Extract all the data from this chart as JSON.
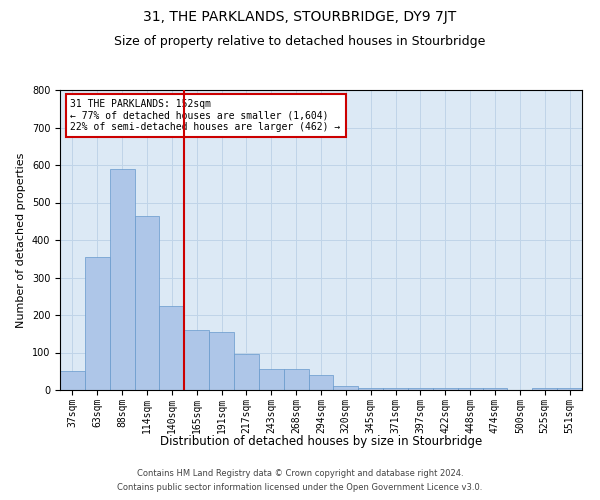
{
  "title": "31, THE PARKLANDS, STOURBRIDGE, DY9 7JT",
  "subtitle": "Size of property relative to detached houses in Stourbridge",
  "xlabel": "Distribution of detached houses by size in Stourbridge",
  "ylabel": "Number of detached properties",
  "bar_labels": [
    "37sqm",
    "63sqm",
    "88sqm",
    "114sqm",
    "140sqm",
    "165sqm",
    "191sqm",
    "217sqm",
    "243sqm",
    "268sqm",
    "294sqm",
    "320sqm",
    "345sqm",
    "371sqm",
    "397sqm",
    "422sqm",
    "448sqm",
    "474sqm",
    "500sqm",
    "525sqm",
    "551sqm"
  ],
  "bar_values": [
    50,
    355,
    590,
    465,
    225,
    160,
    155,
    95,
    55,
    55,
    40,
    10,
    5,
    5,
    5,
    5,
    5,
    5,
    0,
    5,
    5
  ],
  "bar_color": "#aec6e8",
  "bar_edge_color": "#6699cc",
  "vline_color": "#cc0000",
  "annotation_text": "31 THE PARKLANDS: 152sqm\n← 77% of detached houses are smaller (1,604)\n22% of semi-detached houses are larger (462) →",
  "annotation_box_color": "#ffffff",
  "annotation_box_edge_color": "#cc0000",
  "ylim": [
    0,
    800
  ],
  "yticks": [
    0,
    100,
    200,
    300,
    400,
    500,
    600,
    700,
    800
  ],
  "grid_color": "#c0d4e8",
  "bg_color": "#dce9f5",
  "footer_line1": "Contains HM Land Registry data © Crown copyright and database right 2024.",
  "footer_line2": "Contains public sector information licensed under the Open Government Licence v3.0.",
  "title_fontsize": 10,
  "subtitle_fontsize": 9,
  "tick_fontsize": 7,
  "xlabel_fontsize": 8.5,
  "ylabel_fontsize": 8
}
